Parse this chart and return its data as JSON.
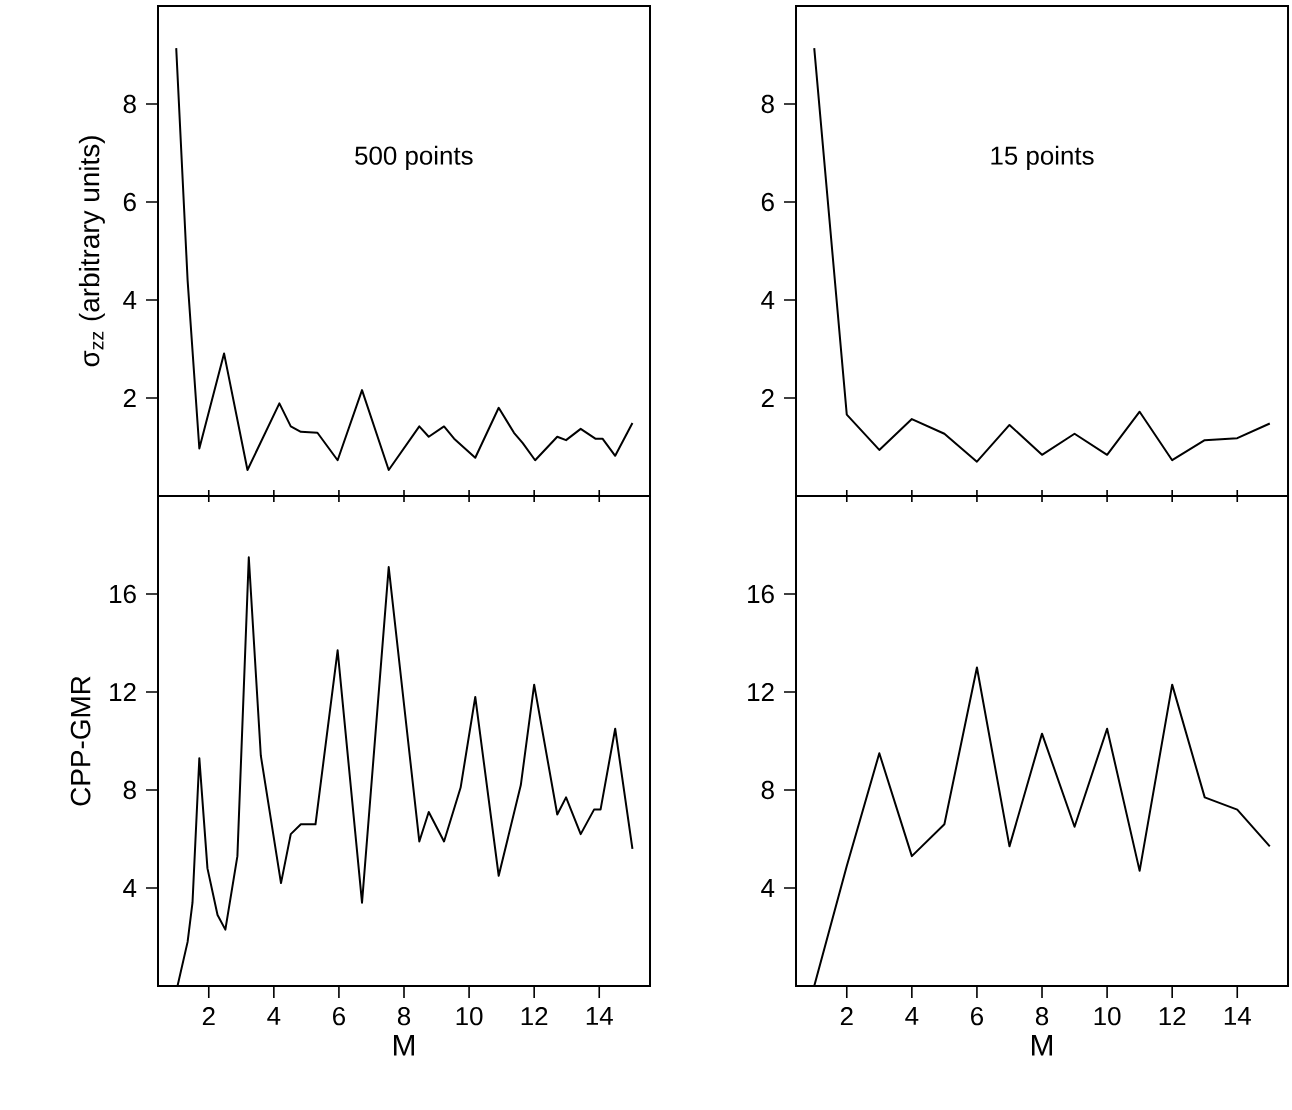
{
  "chart_data": [
    {
      "type": "line",
      "ylabel": "σ$_{zz}$ (arbitrary units)",
      "annotations": [
        "500 points"
      ],
      "color": "#000000",
      "tick_labels": "y",
      "xlim": [
        0.44,
        15.56
      ],
      "ylim": [
        0,
        10
      ],
      "xticks": [
        2,
        4,
        6,
        8,
        10,
        12,
        14
      ],
      "yticks": [
        2,
        4,
        6,
        8
      ],
      "x": [
        1.0,
        1.35,
        1.71,
        2.47,
        3.19,
        4.17,
        4.52,
        4.83,
        5.34,
        5.96,
        6.71,
        7.53,
        8.47,
        8.76,
        9.23,
        9.54,
        10.19,
        10.91,
        11.38,
        11.65,
        12.03,
        12.71,
        12.98,
        13.43,
        13.88,
        14.1,
        14.49,
        15.02
      ],
      "values": [
        9.14,
        4.4,
        0.97,
        2.91,
        0.53,
        1.89,
        1.42,
        1.31,
        1.29,
        0.73,
        2.16,
        0.53,
        1.42,
        1.21,
        1.42,
        1.17,
        0.78,
        1.8,
        1.29,
        1.08,
        0.73,
        1.21,
        1.14,
        1.37,
        1.17,
        1.17,
        0.82,
        1.49
      ]
    },
    {
      "type": "line",
      "annotations": [
        "15 points"
      ],
      "color": "#000000",
      "tick_labels": "y",
      "xlim": [
        0.44,
        15.56
      ],
      "ylim": [
        0,
        10
      ],
      "xticks": [
        2,
        4,
        6,
        8,
        10,
        12,
        14
      ],
      "yticks": [
        2,
        4,
        6,
        8
      ],
      "x": [
        1,
        2,
        3,
        4,
        5,
        6,
        7,
        8,
        9,
        10,
        11,
        12,
        13,
        14,
        15
      ],
      "values": [
        9.14,
        1.66,
        0.94,
        1.57,
        1.27,
        0.7,
        1.45,
        0.84,
        1.27,
        0.84,
        1.72,
        0.73,
        1.14,
        1.18,
        1.48
      ]
    },
    {
      "type": "line",
      "ylabel": "CPP-GMR",
      "xlabel": "M",
      "color": "#000000",
      "xlim": [
        0.44,
        15.56
      ],
      "ylim": [
        0,
        20
      ],
      "xticks": [
        2,
        4,
        6,
        8,
        10,
        12,
        14
      ],
      "yticks": [
        4,
        8,
        12,
        16
      ],
      "x": [
        1.04,
        1.35,
        1.5,
        1.71,
        1.96,
        2.27,
        2.51,
        2.88,
        3.23,
        3.6,
        4.22,
        4.52,
        4.83,
        5.28,
        5.96,
        6.71,
        7.53,
        8.47,
        8.76,
        9.23,
        9.74,
        10.19,
        10.91,
        11.59,
        12.0,
        12.71,
        12.98,
        13.43,
        13.84,
        14.04,
        14.49,
        15.02
      ],
      "values": [
        0,
        1.8,
        3.4,
        9.3,
        4.8,
        2.9,
        2.3,
        5.3,
        17.5,
        9.4,
        4.2,
        6.2,
        6.6,
        6.6,
        13.7,
        3.4,
        17.1,
        5.9,
        7.1,
        5.9,
        8.1,
        11.8,
        4.5,
        8.2,
        12.3,
        7.0,
        7.7,
        6.2,
        7.2,
        7.2,
        10.5,
        5.6
      ]
    },
    {
      "type": "line",
      "xlabel": "M",
      "color": "#000000",
      "xlim": [
        0.44,
        15.56
      ],
      "ylim": [
        0,
        20
      ],
      "xticks": [
        2,
        4,
        6,
        8,
        10,
        12,
        14
      ],
      "yticks": [
        4,
        8,
        12,
        16
      ],
      "x": [
        1,
        2,
        3,
        4,
        5,
        6,
        7,
        8,
        9,
        10,
        11,
        12,
        13,
        14,
        15
      ],
      "values": [
        0,
        4.9,
        9.5,
        5.3,
        6.6,
        13.0,
        5.7,
        10.3,
        6.5,
        10.5,
        4.7,
        12.3,
        7.7,
        7.2,
        5.7
      ]
    }
  ]
}
